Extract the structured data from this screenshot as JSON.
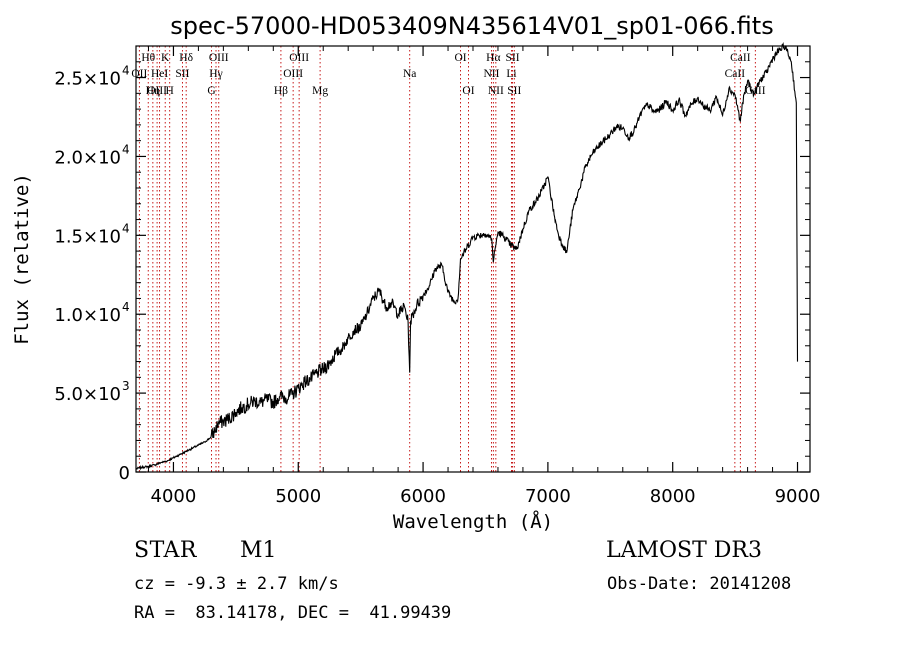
{
  "chart_data": {
    "type": "line",
    "title": "spec-57000-HD053409N435614V01_sp01-066.fits",
    "xlabel": "Wavelength (Å)",
    "ylabel": "Flux (relative)",
    "xlim": [
      3700,
      9100
    ],
    "ylim": [
      0,
      27000
    ],
    "x_ticks": [
      {
        "value": 4000,
        "label": "4000"
      },
      {
        "value": 5000,
        "label": "5000"
      },
      {
        "value": 6000,
        "label": "6000"
      },
      {
        "value": 7000,
        "label": "7000"
      },
      {
        "value": 8000,
        "label": "8000"
      },
      {
        "value": 9000,
        "label": "9000"
      }
    ],
    "y_ticks": [
      {
        "value": 0,
        "mant": "0",
        "exp": ""
      },
      {
        "value": 5000,
        "mant": "5.0×10",
        "exp": "3"
      },
      {
        "value": 10000,
        "mant": "1.0×10",
        "exp": "4"
      },
      {
        "value": 15000,
        "mant": "1.5×10",
        "exp": "4"
      },
      {
        "value": 20000,
        "mant": "2.0×10",
        "exp": "4"
      },
      {
        "value": 25000,
        "mant": "2.5×10",
        "exp": "4"
      }
    ],
    "series": [
      {
        "name": "flux",
        "x": [
          3700,
          3750,
          3800,
          3850,
          3900,
          3950,
          4000,
          4050,
          4100,
          4150,
          4200,
          4250,
          4300,
          4330,
          4360,
          4400,
          4450,
          4500,
          4550,
          4600,
          4650,
          4700,
          4750,
          4800,
          4850,
          4900,
          4950,
          5000,
          5050,
          5100,
          5150,
          5200,
          5250,
          5300,
          5350,
          5400,
          5450,
          5500,
          5550,
          5600,
          5650,
          5700,
          5750,
          5800,
          5850,
          5880,
          5893,
          5900,
          5950,
          6000,
          6050,
          6100,
          6150,
          6200,
          6250,
          6280,
          6300,
          6350,
          6400,
          6450,
          6500,
          6550,
          6563,
          6580,
          6600,
          6650,
          6700,
          6750,
          6800,
          6850,
          6900,
          6950,
          7000,
          7050,
          7080,
          7100,
          7150,
          7200,
          7250,
          7300,
          7350,
          7400,
          7450,
          7500,
          7550,
          7600,
          7650,
          7700,
          7750,
          7800,
          7850,
          7900,
          7950,
          8000,
          8050,
          8100,
          8150,
          8200,
          8250,
          8300,
          8350,
          8400,
          8450,
          8500,
          8542,
          8560,
          8600,
          8650,
          8700,
          8750,
          8800,
          8850,
          8900,
          8950,
          8990,
          9000
        ],
        "y": [
          200,
          300,
          350,
          450,
          600,
          700,
          900,
          1100,
          1300,
          1500,
          1700,
          1900,
          2200,
          2600,
          3100,
          3200,
          3400,
          3800,
          4100,
          4300,
          4500,
          4400,
          4600,
          4400,
          4800,
          4700,
          4900,
          5300,
          5700,
          5900,
          6300,
          6500,
          6900,
          7500,
          7800,
          8500,
          9000,
          9200,
          10000,
          11000,
          11500,
          10500,
          10700,
          10000,
          10500,
          9500,
          6300,
          9600,
          10600,
          11200,
          11800,
          12900,
          13100,
          11400,
          10800,
          11000,
          13500,
          14200,
          14900,
          15000,
          15100,
          14800,
          13300,
          14300,
          15200,
          14900,
          14400,
          14100,
          15400,
          16600,
          17100,
          17800,
          18700,
          16300,
          15200,
          14700,
          13900,
          16600,
          17900,
          19300,
          20100,
          20600,
          21000,
          21400,
          21900,
          21800,
          21200,
          21800,
          22800,
          23300,
          22800,
          23000,
          23500,
          22900,
          23600,
          22600,
          23300,
          23700,
          23200,
          22900,
          23800,
          22600,
          24300,
          23900,
          22200,
          23400,
          24800,
          23900,
          24800,
          25300,
          26200,
          26700,
          27000,
          26000,
          23400,
          7000
        ]
      }
    ],
    "lines": [
      {
        "label": "Hθ",
        "x": 3798,
        "row": 0
      },
      {
        "label": "K",
        "x": 3934,
        "row": 0
      },
      {
        "label": "Hδ",
        "x": 4102,
        "row": 0
      },
      {
        "label": "OII",
        "x": 3727,
        "row": 1
      },
      {
        "label": "HeI",
        "x": 3889,
        "row": 1
      },
      {
        "label": "SII",
        "x": 4072,
        "row": 1
      },
      {
        "label": "OIII",
        "x": 3869,
        "row": 2
      },
      {
        "label": "Hη",
        "x": 3835,
        "row": 2
      },
      {
        "label": "H",
        "x": 3970,
        "row": 2
      },
      {
        "label": "OIII",
        "x": 4363,
        "row": 0
      },
      {
        "label": "Hγ",
        "x": 4341,
        "row": 1
      },
      {
        "label": "G",
        "x": 4305,
        "row": 2
      },
      {
        "label": "OIII",
        "x": 5007,
        "row": 0
      },
      {
        "label": "OIII",
        "x": 4959,
        "row": 1
      },
      {
        "label": "Hβ",
        "x": 4861,
        "row": 2
      },
      {
        "label": "Mg",
        "x": 5175,
        "row": 2
      },
      {
        "label": "Na",
        "x": 5893,
        "row": 1
      },
      {
        "label": "OI",
        "x": 6300,
        "row": 0
      },
      {
        "label": "OI",
        "x": 6364,
        "row": 2
      },
      {
        "label": "Hα",
        "x": 6563,
        "row": 0
      },
      {
        "label": "NII",
        "x": 6548,
        "row": 1
      },
      {
        "label": "NII",
        "x": 6583,
        "row": 2
      },
      {
        "label": "SII",
        "x": 6717,
        "row": 0
      },
      {
        "label": "Li",
        "x": 6708,
        "row": 1
      },
      {
        "label": "SII",
        "x": 6731,
        "row": 2
      },
      {
        "label": "CaII",
        "x": 8542,
        "row": 0
      },
      {
        "label": "CaII",
        "x": 8498,
        "row": 1
      },
      {
        "label": "CaII",
        "x": 8662,
        "row": 2
      }
    ]
  },
  "info": {
    "object_class": "STAR",
    "subclass": "M1",
    "survey": "LAMOST DR3",
    "cz": "cz = -9.3 ± 2.7 km/s",
    "obs_date": "Obs-Date: 20141208",
    "coords": "RA =  83.14178, DEC =  41.99439"
  },
  "colors": {
    "line_marker": "#c00000",
    "spectrum": "#000000",
    "axes": "#000000"
  }
}
